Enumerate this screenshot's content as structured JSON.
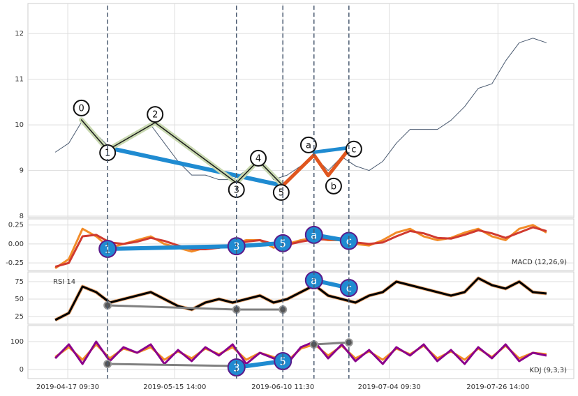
{
  "chart_data": [
    {
      "type": "line",
      "xlim": [
        0,
        100
      ],
      "ylim": [
        7.97,
        12.66
      ],
      "yticks": [
        8,
        9,
        10,
        11,
        12
      ],
      "grid": true,
      "x": [
        5,
        7.5,
        10,
        12.5,
        15,
        17.5,
        20,
        22.5,
        25,
        27.5,
        30,
        32.5,
        35,
        37.5,
        40,
        42.5,
        45,
        47.5,
        50,
        52.5,
        55,
        57.5,
        60,
        62.5,
        65,
        67.5,
        70,
        72.5,
        75,
        77.5,
        80,
        82.5,
        85,
        87.5,
        90,
        92.5,
        95
      ],
      "series": [
        {
          "color": "#4a5a70",
          "values": [
            9.4,
            9.6,
            10.1,
            9.8,
            9.5,
            9.7,
            9.8,
            10.0,
            9.6,
            9.2,
            8.9,
            8.9,
            8.8,
            8.8,
            9.0,
            9.2,
            8.8,
            8.9,
            9.1,
            9.3,
            9.0,
            9.3,
            9.1,
            9.0,
            9.2,
            9.6,
            9.9,
            9.9,
            9.9,
            10.1,
            10.4,
            10.8,
            10.9,
            11.4,
            11.8,
            11.9,
            11.8
          ]
        }
      ],
      "vlines": [
        14.6,
        38.2,
        46.7,
        52.4,
        58.8
      ],
      "lines": [
        {
          "color": "#1f8bd1",
          "width": 6,
          "x": [
            14.6,
            46.7
          ],
          "y": [
            9.5,
            8.67
          ]
        },
        {
          "color": "#c8d8b0",
          "width": 7,
          "x": [
            9.8,
            14.6,
            23.3,
            38.2,
            42.2,
            46.7
          ],
          "y": [
            10.11,
            9.45,
            10.05,
            8.73,
            9.22,
            8.67
          ]
        },
        {
          "color": "#1a1a1a",
          "width": 1.5,
          "x": [
            9.8,
            14.6,
            23.3,
            38.2,
            42.2,
            46.7
          ],
          "y": [
            10.11,
            9.45,
            10.05,
            8.73,
            9.22,
            8.67
          ]
        },
        {
          "color": "#e0561e",
          "width": 5,
          "x": [
            46.7,
            52.4,
            55.0,
            58.8
          ],
          "y": [
            8.67,
            9.34,
            8.89,
            9.47
          ]
        },
        {
          "color": "#1f8bd1",
          "width": 5,
          "x": [
            52.4,
            58.8
          ],
          "y": [
            9.4,
            9.5
          ]
        }
      ],
      "label_fill": "#ffffff",
      "annotations": [
        {
          "text": "0",
          "x": 9.8,
          "y": 10.37
        },
        {
          "text": "1",
          "x": 14.6,
          "y": 9.39
        },
        {
          "text": "2",
          "x": 23.3,
          "y": 10.23
        },
        {
          "text": "3",
          "x": 38.2,
          "y": 8.58
        },
        {
          "text": "4",
          "x": 42.2,
          "y": 9.27
        },
        {
          "text": "5",
          "x": 46.4,
          "y": 8.52
        },
        {
          "text": "a",
          "x": 51.4,
          "y": 9.56
        },
        {
          "text": "b",
          "x": 56.0,
          "y": 8.66
        },
        {
          "text": "c",
          "x": 59.7,
          "y": 9.47
        }
      ]
    },
    {
      "type": "line",
      "label": "MACD (12,26,9)",
      "xlim": [
        0,
        100
      ],
      "ylim": [
        -0.35,
        0.33
      ],
      "yticks": [
        0.25,
        {
          "value": 0,
          "label": "0.00"
        },
        -0.25
      ],
      "grid": true,
      "x": [
        5,
        7.5,
        10,
        12.5,
        15,
        17.5,
        20,
        22.5,
        25,
        27.5,
        30,
        32.5,
        35,
        37.5,
        40,
        42.5,
        45,
        47.5,
        50,
        52.5,
        55,
        57.5,
        60,
        62.5,
        65,
        67.5,
        70,
        72.5,
        75,
        77.5,
        80,
        82.5,
        85,
        87.5,
        90,
        92.5,
        95
      ],
      "series": [
        {
          "color": "#f28c28",
          "values": [
            -0.32,
            -0.2,
            0.2,
            0.1,
            -0.05,
            0.0,
            0.05,
            0.1,
            0.0,
            -0.05,
            -0.1,
            -0.05,
            -0.05,
            0.0,
            0.05,
            0.05,
            -0.05,
            0.0,
            0.05,
            0.08,
            0.05,
            0.05,
            0.0,
            -0.02,
            0.05,
            0.15,
            0.2,
            0.1,
            0.05,
            0.08,
            0.15,
            0.2,
            0.1,
            0.05,
            0.2,
            0.25,
            0.15
          ]
        },
        {
          "color": "#d03a2f",
          "values": [
            -0.3,
            -0.25,
            0.1,
            0.12,
            0.02,
            0.0,
            0.03,
            0.08,
            0.04,
            -0.02,
            -0.07,
            -0.07,
            -0.05,
            -0.02,
            0.03,
            0.05,
            0.0,
            -0.01,
            0.03,
            0.06,
            0.06,
            0.05,
            0.02,
            0.0,
            0.02,
            0.1,
            0.17,
            0.14,
            0.08,
            0.07,
            0.12,
            0.18,
            0.14,
            0.08,
            0.15,
            0.22,
            0.17
          ]
        }
      ],
      "lines": [
        {
          "color": "#1f8bd1",
          "width": 6,
          "x": [
            14.6,
            38.2,
            46.7
          ],
          "y": [
            -0.065,
            -0.03,
            0.01
          ]
        },
        {
          "color": "#1f8bd1",
          "width": 6,
          "x": [
            52.4,
            58.8
          ],
          "y": [
            0.12,
            0.04
          ]
        }
      ],
      "label_fill": "#1f8bd1",
      "annotations": [
        {
          "text": "1",
          "x": 14.6,
          "y": -0.065
        },
        {
          "text": "3",
          "x": 38.2,
          "y": -0.03
        },
        {
          "text": "5",
          "x": 46.7,
          "y": 0.01
        },
        {
          "text": "a",
          "x": 52.4,
          "y": 0.12
        },
        {
          "text": "c",
          "x": 58.8,
          "y": 0.04
        }
      ]
    },
    {
      "type": "line",
      "label": "RSI 14",
      "xlim": [
        0,
        100
      ],
      "ylim": [
        14,
        89
      ],
      "yticks": [
        25,
        50,
        75
      ],
      "grid": true,
      "x": [
        5,
        7.5,
        10,
        12.5,
        15,
        17.5,
        20,
        22.5,
        25,
        27.5,
        30,
        32.5,
        35,
        37.5,
        40,
        42.5,
        45,
        47.5,
        50,
        52.5,
        55,
        57.5,
        60,
        62.5,
        65,
        67.5,
        70,
        72.5,
        75,
        77.5,
        80,
        82.5,
        85,
        87.5,
        90,
        92.5,
        95
      ],
      "series": [
        {
          "color": "#000000",
          "values": [
            20,
            30,
            68,
            60,
            45,
            50,
            55,
            60,
            50,
            40,
            35,
            45,
            50,
            45,
            50,
            55,
            45,
            50,
            60,
            70,
            55,
            50,
            45,
            55,
            60,
            75,
            70,
            65,
            60,
            55,
            60,
            80,
            70,
            65,
            75,
            60,
            58
          ]
        }
      ],
      "lines": [
        {
          "color": "#808080",
          "width": 3,
          "x": [
            14.6,
            38.2,
            46.7
          ],
          "y": [
            41,
            35,
            35
          ]
        },
        {
          "color": "#1f8bd1",
          "width": 6,
          "x": [
            52.4,
            58.8
          ],
          "y": [
            77,
            66
          ]
        }
      ],
      "label_fill": "#1f8bd1",
      "annotations": [
        {
          "text": "a",
          "x": 52.4,
          "y": 77
        },
        {
          "text": "c",
          "x": 58.8,
          "y": 66
        }
      ]
    },
    {
      "type": "line",
      "label": "KDJ (9,3,3)",
      "xlim": [
        0,
        100
      ],
      "ylim": [
        -32.5,
        157.5
      ],
      "yticks": [
        0,
        100
      ],
      "grid": true,
      "xticks": [
        {
          "value": 7.3,
          "label": "2019-04-17 09:30"
        },
        {
          "value": 26.9,
          "label": "2019-05-15 14:00"
        },
        {
          "value": 46.7,
          "label": "2019-06-10 11:30"
        },
        {
          "value": 66.2,
          "label": "2019-07-04 09:30"
        },
        {
          "value": 86.1,
          "label": "2019-07-26 14:00"
        }
      ],
      "x": [
        5,
        7.5,
        10,
        12.5,
        15,
        17.5,
        20,
        22.5,
        25,
        27.5,
        30,
        32.5,
        35,
        37.5,
        40,
        42.5,
        45,
        47.5,
        50,
        52.5,
        55,
        57.5,
        60,
        62.5,
        65,
        67.5,
        70,
        72.5,
        75,
        77.5,
        80,
        82.5,
        85,
        87.5,
        90,
        92.5,
        95
      ],
      "series": [
        {
          "color": "#f28c28",
          "values": [
            45,
            80,
            35,
            90,
            40,
            75,
            60,
            80,
            35,
            65,
            40,
            75,
            55,
            80,
            35,
            60,
            45,
            30,
            75,
            90,
            50,
            85,
            40,
            65,
            35,
            75,
            55,
            85,
            40,
            65,
            35,
            75,
            45,
            85,
            40,
            60,
            55
          ]
        },
        {
          "color": "#8b008b",
          "values": [
            40,
            90,
            20,
            100,
            30,
            80,
            60,
            90,
            20,
            70,
            30,
            80,
            50,
            90,
            20,
            60,
            40,
            20,
            80,
            100,
            40,
            90,
            30,
            70,
            20,
            80,
            50,
            90,
            30,
            70,
            20,
            80,
            40,
            90,
            30,
            60,
            50
          ]
        }
      ],
      "lines": [
        {
          "color": "#808080",
          "width": 3,
          "x": [
            14.6,
            38.2
          ],
          "y": [
            20,
            12.5
          ]
        },
        {
          "color": "#808080",
          "width": 3,
          "x": [
            52.4,
            58.8
          ],
          "y": [
            90,
            97
          ]
        },
        {
          "color": "#1f8bd1",
          "width": 6,
          "x": [
            38.2,
            46.7
          ],
          "y": [
            7.5,
            30
          ]
        }
      ],
      "label_fill": "#1f8bd1",
      "annotations": [
        {
          "text": "3",
          "x": 38.2,
          "y": 7.5
        },
        {
          "text": "5",
          "x": 46.7,
          "y": 30
        }
      ]
    }
  ]
}
